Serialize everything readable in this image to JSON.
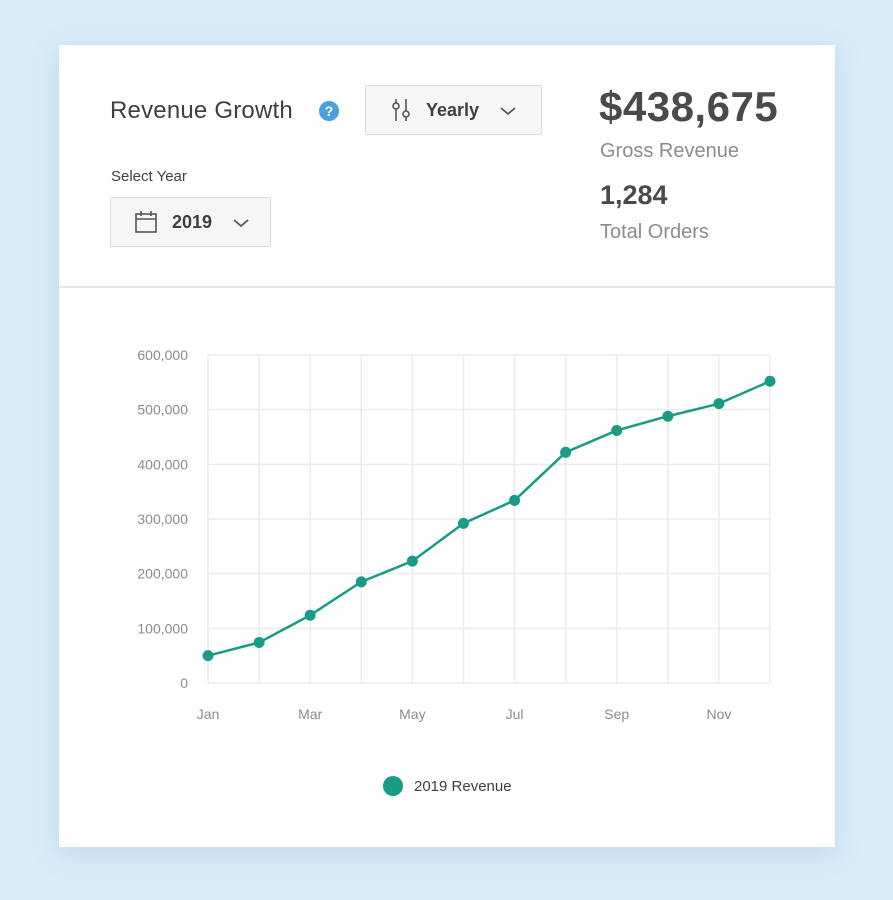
{
  "header": {
    "title": "Revenue Growth",
    "help_icon": "?",
    "period_dropdown": {
      "selected": "Yearly",
      "icon": "sliders-icon"
    },
    "year_select": {
      "label": "Select Year",
      "selected": "2019",
      "icon": "calendar-icon"
    },
    "gross_revenue": {
      "value": "$438,675",
      "label": "Gross Revenue"
    },
    "total_orders": {
      "value": "1,284",
      "label": "Total Orders"
    }
  },
  "colors": {
    "series": "#1a9b85",
    "grid": "#ebebeb",
    "help": "#4a9fde"
  },
  "chart_data": {
    "type": "line",
    "x": [
      "Jan",
      "Feb",
      "Mar",
      "Apr",
      "May",
      "Jun",
      "Jul",
      "Aug",
      "Sep",
      "Oct",
      "Nov",
      "Dec"
    ],
    "x_tick_labels": [
      "Jan",
      "",
      "Mar",
      "",
      "May",
      "",
      "Jul",
      "",
      "Sep",
      "",
      "Nov",
      ""
    ],
    "y_ticks": [
      0,
      100000,
      200000,
      300000,
      400000,
      500000,
      600000
    ],
    "y_tick_labels": [
      "0",
      "100,000",
      "200,000",
      "300,000",
      "400,000",
      "500,000",
      "600,000"
    ],
    "ylim": [
      0,
      600000
    ],
    "grid": true,
    "legend_position": "bottom-center",
    "series": [
      {
        "name": "2019 Revenue",
        "values": [
          50000,
          74000,
          124000,
          185000,
          223000,
          292000,
          334000,
          422000,
          462000,
          488000,
          511000,
          552000
        ]
      }
    ]
  }
}
